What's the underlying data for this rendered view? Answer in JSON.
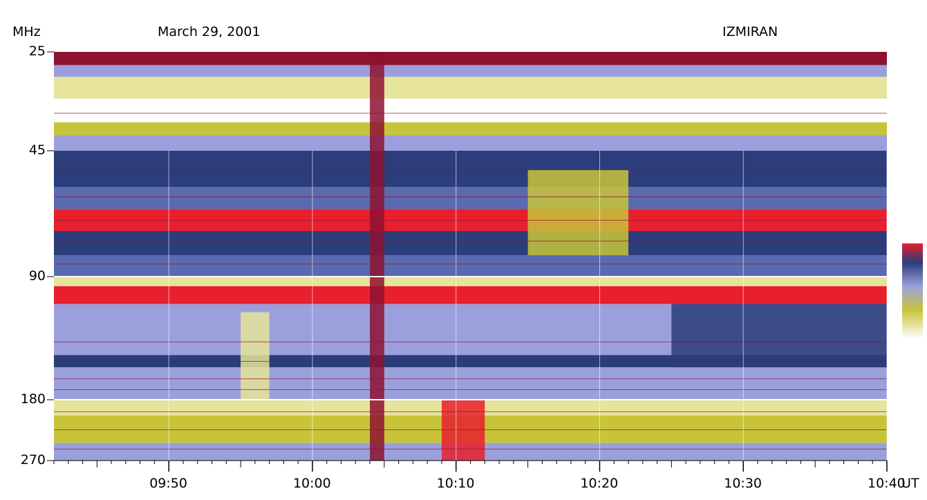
{
  "header": {
    "unit": "MHz",
    "date": "March 29, 2001",
    "observatory": "IZMIRAN"
  },
  "colors": {
    "red": "#e8202e",
    "dark_red": "#8e1232",
    "navy": "#2b3d7a",
    "blue": "#5a6ab0",
    "lavender": "#9ba0dc",
    "yellow": "#c8c43a",
    "pale_yellow": "#e6e39a",
    "white": "#ffffff"
  },
  "chart_data": {
    "type": "heatmap",
    "title": "March 29, 2001",
    "ylabel": "MHz",
    "xlabel": "UT",
    "y_ticks": [
      "25",
      "45",
      "90",
      "180",
      "270"
    ],
    "x_ticks": [
      "09:50",
      "10:00",
      "10:10",
      "10:20",
      "10:30",
      "10:40"
    ],
    "x_range": [
      "09:42",
      "10:40"
    ],
    "y_scale": "log",
    "y_range": [
      25,
      270
    ],
    "colorbar": [
      "#e8202e",
      "#2b3d7a",
      "#9ba0dc",
      "#c8c43a",
      "#ffffff"
    ],
    "bands": [
      {
        "name": "25-45",
        "rows": [
          {
            "f": [
              25,
              27
            ],
            "color": "dark_red"
          },
          {
            "f": [
              27,
              29
            ],
            "color": "lavender"
          },
          {
            "f": [
              29,
              33
            ],
            "color": "pale_yellow"
          },
          {
            "f": [
              33,
              38
            ],
            "color": "white"
          },
          {
            "f": [
              38,
              41
            ],
            "color": "yellow"
          },
          {
            "f": [
              41,
              45
            ],
            "color": "lavender"
          }
        ]
      },
      {
        "name": "45-90",
        "rows": [
          {
            "f": [
              45,
              55
            ],
            "color": "navy"
          },
          {
            "f": [
              55,
              62
            ],
            "color": "blue"
          },
          {
            "f": [
              62,
              70
            ],
            "color": "red"
          },
          {
            "f": [
              70,
              80
            ],
            "color": "navy"
          },
          {
            "f": [
              80,
              90
            ],
            "color": "blue"
          }
        ]
      },
      {
        "name": "90-180",
        "rows": [
          {
            "f": [
              90,
              95
            ],
            "color": "pale_yellow"
          },
          {
            "f": [
              95,
              105
            ],
            "color": "red"
          },
          {
            "f": [
              105,
              140
            ],
            "color": "lavender"
          },
          {
            "f": [
              140,
              150
            ],
            "color": "navy"
          },
          {
            "f": [
              150,
              180
            ],
            "color": "lavender"
          }
        ]
      },
      {
        "name": "180-270",
        "rows": [
          {
            "f": [
              180,
              200
            ],
            "color": "pale_yellow"
          },
          {
            "f": [
              200,
              240
            ],
            "color": "yellow"
          },
          {
            "f": [
              240,
              270
            ],
            "color": "lavender"
          }
        ]
      }
    ],
    "events": [
      {
        "t": [
          "10:04",
          "10:05"
        ],
        "f": [
          25,
          270
        ],
        "color": "dark_red"
      },
      {
        "t": [
          "10:09",
          "10:12"
        ],
        "f": [
          180,
          270
        ],
        "color": "red"
      },
      {
        "t": [
          "09:55",
          "09:57"
        ],
        "f": [
          110,
          180
        ],
        "color": "pale_yellow"
      },
      {
        "t": [
          "10:15",
          "10:22"
        ],
        "f": [
          50,
          80
        ],
        "color": "yellow"
      },
      {
        "t": [
          "10:25",
          "10:40"
        ],
        "f": [
          105,
          150
        ],
        "color": "navy"
      }
    ]
  }
}
